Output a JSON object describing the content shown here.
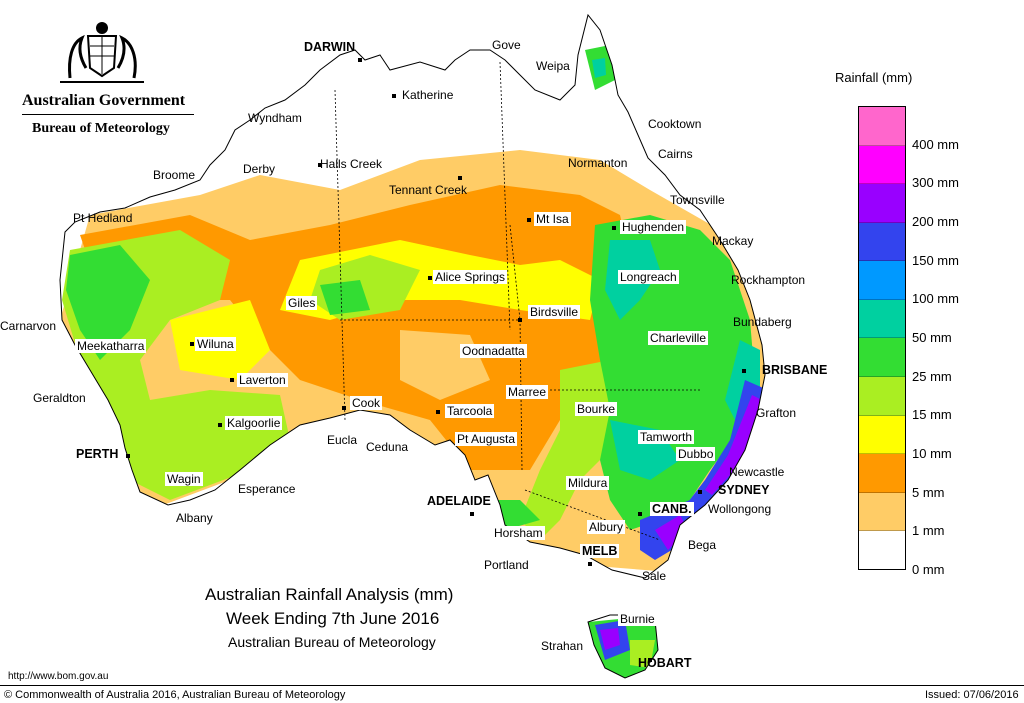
{
  "header": {
    "government": "Australian Government",
    "bureau": "Bureau of Meteorology"
  },
  "title": {
    "line1": "Australian Rainfall Analysis (mm)",
    "line2": "Week Ending 7th June 2016",
    "line3": "Australian Bureau of Meteorology"
  },
  "legend": {
    "title": "Rainfall (mm)",
    "levels": [
      {
        "label": "400 mm",
        "color": "#ff66cc"
      },
      {
        "label": "300 mm",
        "color": "#ff00ff"
      },
      {
        "label": "200 mm",
        "color": "#9900ff"
      },
      {
        "label": "150 mm",
        "color": "#3344ee"
      },
      {
        "label": "100 mm",
        "color": "#0099ff"
      },
      {
        "label": "50 mm",
        "color": "#00d0a0"
      },
      {
        "label": "25 mm",
        "color": "#33dd33"
      },
      {
        "label": "15 mm",
        "color": "#aaee22"
      },
      {
        "label": "10 mm",
        "color": "#ffff00"
      },
      {
        "label": "5 mm",
        "color": "#ff9900"
      },
      {
        "label": "1 mm",
        "color": "#ffcc66"
      },
      {
        "label": "0 mm",
        "color": "#ffffff"
      }
    ]
  },
  "places": {
    "darwin": "DARWIN",
    "gove": "Gove",
    "weipa": "Weipa",
    "katherine": "Katherine",
    "wyndham": "Wyndham",
    "cooktown": "Cooktown",
    "cairns": "Cairns",
    "normanton": "Normanton",
    "broome": "Broome",
    "derby": "Derby",
    "halls_creek": "Halls Creek",
    "tennant_creek": "Tennant Creek",
    "townsville": "Townsville",
    "pt_hedland": "Pt Hedland",
    "mt_isa": "Mt Isa",
    "hughenden": "Hughenden",
    "mackay": "Mackay",
    "alice_springs": "Alice Springs",
    "longreach": "Longreach",
    "rockhampton": "Rockhampton",
    "giles": "Giles",
    "birdsville": "Birdsville",
    "bundaberg": "Bundaberg",
    "carnarvon": "Carnarvon",
    "meekatharra": "Meekatharra",
    "wiluna": "Wiluna",
    "charleville": "Charleville",
    "oodnadatta": "Oodnadatta",
    "brisbane": "BRISBANE",
    "laverton": "Laverton",
    "geraldton": "Geraldton",
    "marree": "Marree",
    "cook": "Cook",
    "grafton": "Grafton",
    "bourke": "Bourke",
    "tarcoola": "Tarcoola",
    "kalgoorlie": "Kalgoorlie",
    "tamworth": "Tamworth",
    "pt_augusta": "Pt Augusta",
    "eucla": "Eucla",
    "ceduna": "Ceduna",
    "perth": "PERTH",
    "dubbo": "Dubbo",
    "newcastle": "Newcastle",
    "wagin": "Wagin",
    "mildura": "Mildura",
    "sydney": "SYDNEY",
    "esperance": "Esperance",
    "adelaide": "ADELAIDE",
    "canberra": "CANB.",
    "wollongong": "Wollongong",
    "albany": "Albany",
    "albury": "Albury",
    "horsham": "Horsham",
    "bega": "Bega",
    "melbourne": "MELB",
    "portland": "Portland",
    "sale": "Sale",
    "burnie": "Burnie",
    "strahan": "Strahan",
    "hobart": "HOBART"
  },
  "footer": {
    "url": "http://www.bom.gov.au",
    "copyright": "© Commonwealth of Australia 2016, Australian Bureau of Meteorology",
    "issued": "Issued: 07/06/2016"
  }
}
